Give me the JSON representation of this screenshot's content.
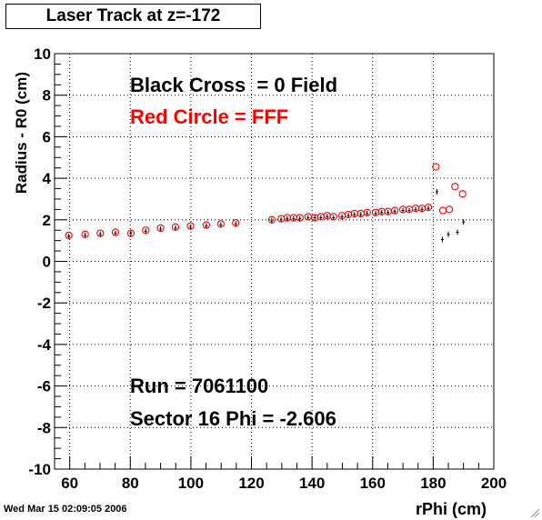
{
  "title": "Laser Track at z=-172",
  "timestamp": "Wed Mar 15 02:09:05 2006",
  "chart_data": {
    "type": "scatter",
    "xlabel": "rPhi (cm)",
    "ylabel": "Radius - R0 (cm)",
    "xlim": [
      55,
      200
    ],
    "ylim": [
      -10,
      10
    ],
    "x_ticks": [
      "60",
      "80",
      "100",
      "120",
      "140",
      "160",
      "180",
      "200"
    ],
    "y_ticks": [
      "-10",
      "-8",
      "-6",
      "-4",
      "-2",
      "0",
      "2",
      "4",
      "6",
      "8",
      "10"
    ],
    "grid": true,
    "annotations": [
      {
        "text": "Black Cross  = 0 Field",
        "color": "#000000"
      },
      {
        "text": "Red Circle = FFF",
        "color": "#ff0000"
      },
      {
        "text": "Run = 7061100",
        "color": "#000000"
      },
      {
        "text": "Sector 16 Phi = -2.606",
        "color": "#000000"
      }
    ],
    "series": [
      {
        "name": "Black Cross  = 0 Field",
        "marker": "cross",
        "color": "#000000",
        "points": [
          [
            59.7,
            1.2
          ],
          [
            65.1,
            1.25
          ],
          [
            70.1,
            1.3
          ],
          [
            75.1,
            1.35
          ],
          [
            80.2,
            1.35
          ],
          [
            85.1,
            1.45
          ],
          [
            90.0,
            1.55
          ],
          [
            94.9,
            1.6
          ],
          [
            99.9,
            1.65
          ],
          [
            105.1,
            1.7
          ],
          [
            109.9,
            1.75
          ],
          [
            114.8,
            1.8
          ],
          [
            126.7,
            1.95
          ],
          [
            129.8,
            2.0
          ],
          [
            131.8,
            2.05
          ],
          [
            133.9,
            2.05
          ],
          [
            136.0,
            2.05
          ],
          [
            138.7,
            2.1
          ],
          [
            140.9,
            2.1
          ],
          [
            142.9,
            2.1
          ],
          [
            145.0,
            2.15
          ],
          [
            147.1,
            2.1
          ],
          [
            149.9,
            2.15
          ],
          [
            152.0,
            2.2
          ],
          [
            154.0,
            2.25
          ],
          [
            156.1,
            2.25
          ],
          [
            158.2,
            2.3
          ],
          [
            161.0,
            2.3
          ],
          [
            163.0,
            2.35
          ],
          [
            165.1,
            2.35
          ],
          [
            167.3,
            2.4
          ],
          [
            170.0,
            2.45
          ],
          [
            172.1,
            2.45
          ],
          [
            174.2,
            2.5
          ],
          [
            176.3,
            2.5
          ],
          [
            178.4,
            2.55
          ],
          [
            181.2,
            3.35
          ],
          [
            183.0,
            1.05
          ],
          [
            185.0,
            1.3
          ],
          [
            188.0,
            1.4
          ],
          [
            190.0,
            1.9
          ]
        ]
      },
      {
        "name": "Red Circle = FFF",
        "marker": "circle",
        "color": "#ff0000",
        "points": [
          [
            59.7,
            1.25
          ],
          [
            65.1,
            1.3
          ],
          [
            70.1,
            1.35
          ],
          [
            75.1,
            1.4
          ],
          [
            80.2,
            1.35
          ],
          [
            85.1,
            1.5
          ],
          [
            90.0,
            1.6
          ],
          [
            94.9,
            1.65
          ],
          [
            99.9,
            1.7
          ],
          [
            105.1,
            1.75
          ],
          [
            109.9,
            1.8
          ],
          [
            114.8,
            1.85
          ],
          [
            126.7,
            2.0
          ],
          [
            129.8,
            2.05
          ],
          [
            131.8,
            2.1
          ],
          [
            133.9,
            2.1
          ],
          [
            136.0,
            2.1
          ],
          [
            138.7,
            2.15
          ],
          [
            140.9,
            2.1
          ],
          [
            142.9,
            2.15
          ],
          [
            145.0,
            2.2
          ],
          [
            147.1,
            2.15
          ],
          [
            149.9,
            2.2
          ],
          [
            152.0,
            2.25
          ],
          [
            154.0,
            2.3
          ],
          [
            156.1,
            2.3
          ],
          [
            158.2,
            2.35
          ],
          [
            161.0,
            2.35
          ],
          [
            163.0,
            2.4
          ],
          [
            165.1,
            2.4
          ],
          [
            167.3,
            2.45
          ],
          [
            170.0,
            2.5
          ],
          [
            172.1,
            2.5
          ],
          [
            174.2,
            2.55
          ],
          [
            176.3,
            2.55
          ],
          [
            178.4,
            2.6
          ],
          [
            180.9,
            4.55
          ],
          [
            183.2,
            2.45
          ],
          [
            185.3,
            2.5
          ],
          [
            187.2,
            3.6
          ],
          [
            189.7,
            3.25
          ]
        ]
      }
    ]
  }
}
